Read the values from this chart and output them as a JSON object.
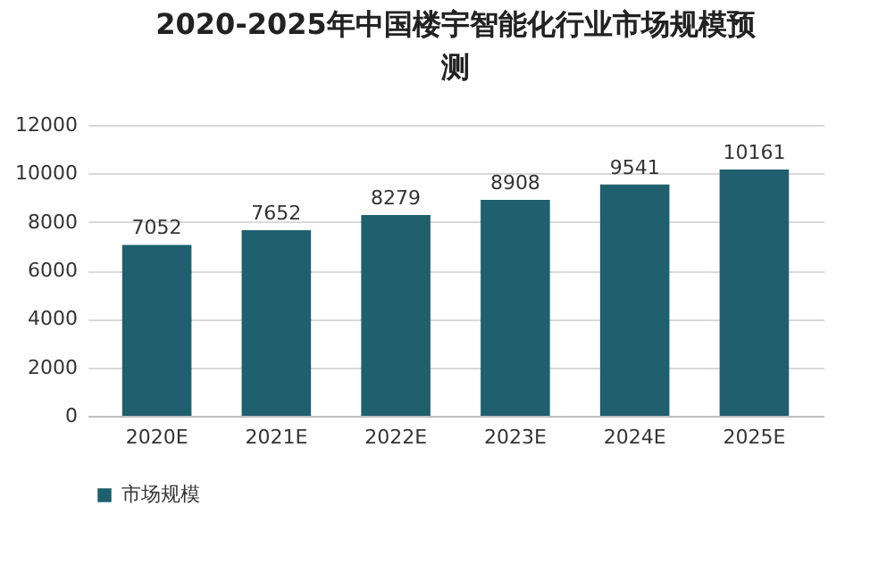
{
  "chart_data": {
    "type": "bar",
    "title": "2020-2025年中国楼宇智能化行业市场规模预测",
    "categories": [
      "2020E",
      "2021E",
      "2022E",
      "2023E",
      "2024E",
      "2025E"
    ],
    "series": [
      {
        "name": "市场规模",
        "color": "#1f5f6e",
        "values": [
          7052,
          7652,
          8279,
          8908,
          9541,
          10161
        ]
      }
    ],
    "ylim": [
      0,
      12000
    ],
    "yticks": [
      0,
      2000,
      4000,
      6000,
      8000,
      10000,
      12000
    ],
    "grid": "y",
    "legend": "bottom",
    "data_labels": true
  }
}
